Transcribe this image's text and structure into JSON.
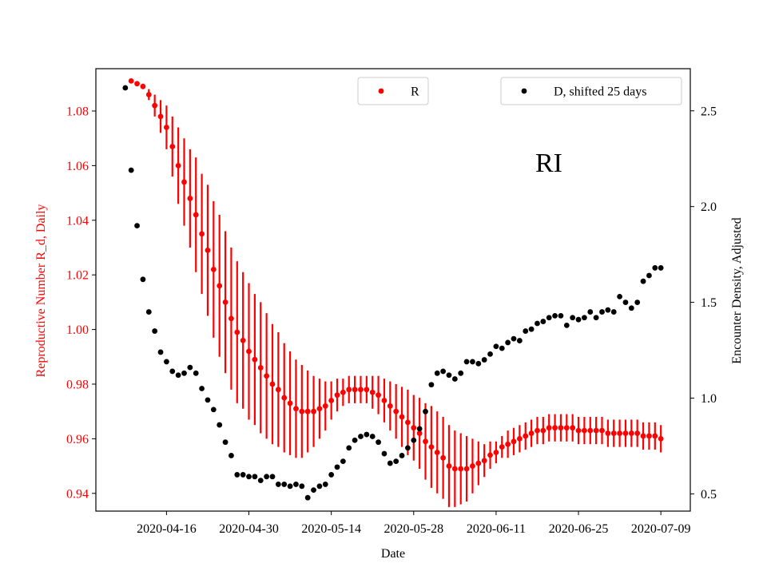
{
  "chart_data": {
    "type": "scatter",
    "annotation": "RI",
    "xlabel": "Date",
    "ylabel_left": "Reproductive Number R_d, Daily",
    "ylabel_right": "Encounter Density, Adjusted",
    "left_color": "#ff0000",
    "right_color": "#000000",
    "x_ticks": [
      "2020-04-16",
      "2020-04-30",
      "2020-05-14",
      "2020-05-28",
      "2020-06-11",
      "2020-06-25",
      "2020-07-09"
    ],
    "y_left_ticks": [
      "0.94",
      "0.96",
      "0.98",
      "1.00",
      "1.02",
      "1.04",
      "1.06",
      "1.08"
    ],
    "y_right_ticks": [
      "0.5",
      "1.0",
      "1.5",
      "2.0",
      "2.5"
    ],
    "xlim": [
      "2020-04-04",
      "2020-07-14"
    ],
    "ylim_left": [
      0.9335,
      1.0955
    ],
    "ylim_right": [
      0.41,
      2.72
    ],
    "legend_left": {
      "label": "R",
      "position": "upper-center"
    },
    "legend_right": {
      "label": "D, shifted 25 days",
      "position": "upper-right"
    },
    "series": [
      {
        "name": "R",
        "axis": "left",
        "x": [
          "2020-04-10",
          "2020-04-11",
          "2020-04-12",
          "2020-04-13",
          "2020-04-14",
          "2020-04-15",
          "2020-04-16",
          "2020-04-17",
          "2020-04-18",
          "2020-04-19",
          "2020-04-20",
          "2020-04-21",
          "2020-04-22",
          "2020-04-23",
          "2020-04-24",
          "2020-04-25",
          "2020-04-26",
          "2020-04-27",
          "2020-04-28",
          "2020-04-29",
          "2020-04-30",
          "2020-05-01",
          "2020-05-02",
          "2020-05-03",
          "2020-05-04",
          "2020-05-05",
          "2020-05-06",
          "2020-05-07",
          "2020-05-08",
          "2020-05-09",
          "2020-05-10",
          "2020-05-11",
          "2020-05-12",
          "2020-05-13",
          "2020-05-14",
          "2020-05-15",
          "2020-05-16",
          "2020-05-17",
          "2020-05-18",
          "2020-05-19",
          "2020-05-20",
          "2020-05-21",
          "2020-05-22",
          "2020-05-23",
          "2020-05-24",
          "2020-05-25",
          "2020-05-26",
          "2020-05-27",
          "2020-05-28",
          "2020-05-29",
          "2020-05-30",
          "2020-05-31",
          "2020-06-01",
          "2020-06-02",
          "2020-06-03",
          "2020-06-04",
          "2020-06-05",
          "2020-06-06",
          "2020-06-07",
          "2020-06-08",
          "2020-06-09",
          "2020-06-10",
          "2020-06-11",
          "2020-06-12",
          "2020-06-13",
          "2020-06-14",
          "2020-06-15",
          "2020-06-16",
          "2020-06-17",
          "2020-06-18",
          "2020-06-19",
          "2020-06-20",
          "2020-06-21",
          "2020-06-22",
          "2020-06-23",
          "2020-06-24",
          "2020-06-25",
          "2020-06-26",
          "2020-06-27",
          "2020-06-28",
          "2020-06-29",
          "2020-06-30",
          "2020-07-01",
          "2020-07-02",
          "2020-07-03",
          "2020-07-04",
          "2020-07-05",
          "2020-07-06",
          "2020-07-07",
          "2020-07-08",
          "2020-07-09"
        ],
        "y": [
          1.091,
          1.09,
          1.089,
          1.086,
          1.082,
          1.078,
          1.074,
          1.067,
          1.06,
          1.054,
          1.048,
          1.042,
          1.035,
          1.029,
          1.022,
          1.016,
          1.01,
          1.004,
          0.999,
          0.996,
          0.992,
          0.989,
          0.986,
          0.983,
          0.98,
          0.978,
          0.975,
          0.973,
          0.971,
          0.97,
          0.97,
          0.97,
          0.971,
          0.972,
          0.974,
          0.976,
          0.977,
          0.978,
          0.978,
          0.978,
          0.978,
          0.977,
          0.976,
          0.974,
          0.972,
          0.97,
          0.968,
          0.966,
          0.964,
          0.962,
          0.959,
          0.957,
          0.955,
          0.953,
          0.95,
          0.949,
          0.949,
          0.949,
          0.95,
          0.951,
          0.952,
          0.954,
          0.955,
          0.957,
          0.958,
          0.959,
          0.96,
          0.961,
          0.962,
          0.963,
          0.963,
          0.964,
          0.964,
          0.964,
          0.964,
          0.964,
          0.963,
          0.963,
          0.963,
          0.963,
          0.963,
          0.962,
          0.962,
          0.962,
          0.962,
          0.962,
          0.962,
          0.961,
          0.961,
          0.961,
          0.96
        ],
        "err": [
          0.0,
          0.0,
          0.001,
          0.002,
          0.004,
          0.006,
          0.008,
          0.011,
          0.014,
          0.016,
          0.018,
          0.021,
          0.022,
          0.024,
          0.025,
          0.026,
          0.026,
          0.026,
          0.026,
          0.025,
          0.025,
          0.024,
          0.024,
          0.023,
          0.022,
          0.021,
          0.02,
          0.019,
          0.018,
          0.017,
          0.015,
          0.013,
          0.011,
          0.009,
          0.007,
          0.006,
          0.005,
          0.005,
          0.005,
          0.005,
          0.005,
          0.006,
          0.007,
          0.008,
          0.009,
          0.01,
          0.011,
          0.012,
          0.012,
          0.013,
          0.014,
          0.015,
          0.015,
          0.015,
          0.015,
          0.014,
          0.013,
          0.012,
          0.01,
          0.008,
          0.006,
          0.005,
          0.004,
          0.004,
          0.005,
          0.005,
          0.005,
          0.005,
          0.005,
          0.005,
          0.005,
          0.005,
          0.005,
          0.005,
          0.005,
          0.005,
          0.005,
          0.005,
          0.005,
          0.005,
          0.005,
          0.005,
          0.005,
          0.005,
          0.005,
          0.005,
          0.005,
          0.005,
          0.005,
          0.005,
          0.005
        ]
      },
      {
        "name": "D, shifted 25 days",
        "axis": "right",
        "x": [
          "2020-04-09",
          "2020-04-10",
          "2020-04-11",
          "2020-04-12",
          "2020-04-13",
          "2020-04-14",
          "2020-04-15",
          "2020-04-16",
          "2020-04-17",
          "2020-04-18",
          "2020-04-19",
          "2020-04-20",
          "2020-04-21",
          "2020-04-22",
          "2020-04-23",
          "2020-04-24",
          "2020-04-25",
          "2020-04-26",
          "2020-04-27",
          "2020-04-28",
          "2020-04-29",
          "2020-04-30",
          "2020-05-01",
          "2020-05-02",
          "2020-05-03",
          "2020-05-04",
          "2020-05-05",
          "2020-05-06",
          "2020-05-07",
          "2020-05-08",
          "2020-05-09",
          "2020-05-10",
          "2020-05-11",
          "2020-05-12",
          "2020-05-13",
          "2020-05-14",
          "2020-05-15",
          "2020-05-16",
          "2020-05-17",
          "2020-05-18",
          "2020-05-19",
          "2020-05-20",
          "2020-05-21",
          "2020-05-22",
          "2020-05-23",
          "2020-05-24",
          "2020-05-25",
          "2020-05-26",
          "2020-05-27",
          "2020-05-28",
          "2020-05-29",
          "2020-05-30",
          "2020-05-31",
          "2020-06-01",
          "2020-06-02",
          "2020-06-03",
          "2020-06-04",
          "2020-06-05",
          "2020-06-06",
          "2020-06-07",
          "2020-06-08",
          "2020-06-09",
          "2020-06-10",
          "2020-06-11",
          "2020-06-12",
          "2020-06-13",
          "2020-06-14",
          "2020-06-15",
          "2020-06-16",
          "2020-06-17",
          "2020-06-18",
          "2020-06-19",
          "2020-06-20",
          "2020-06-21",
          "2020-06-22",
          "2020-06-23",
          "2020-06-24",
          "2020-06-25",
          "2020-06-26",
          "2020-06-27",
          "2020-06-28",
          "2020-06-29",
          "2020-06-30",
          "2020-07-01",
          "2020-07-02",
          "2020-07-03",
          "2020-07-04",
          "2020-07-05",
          "2020-07-06",
          "2020-07-07",
          "2020-07-08",
          "2020-07-09"
        ],
        "y": [
          2.62,
          2.19,
          1.9,
          1.62,
          1.45,
          1.35,
          1.24,
          1.19,
          1.14,
          1.12,
          1.13,
          1.16,
          1.13,
          1.05,
          0.99,
          0.94,
          0.86,
          0.77,
          0.7,
          0.6,
          0.6,
          0.59,
          0.59,
          0.57,
          0.59,
          0.59,
          0.55,
          0.55,
          0.54,
          0.55,
          0.54,
          0.48,
          0.52,
          0.54,
          0.55,
          0.6,
          0.64,
          0.67,
          0.74,
          0.78,
          0.8,
          0.81,
          0.8,
          0.77,
          0.71,
          0.66,
          0.67,
          0.7,
          0.74,
          0.78,
          0.84,
          0.93,
          1.07,
          1.13,
          1.14,
          1.12,
          1.1,
          1.13,
          1.19,
          1.19,
          1.18,
          1.2,
          1.23,
          1.27,
          1.26,
          1.29,
          1.31,
          1.3,
          1.35,
          1.36,
          1.39,
          1.4,
          1.42,
          1.43,
          1.43,
          1.38,
          1.42,
          1.41,
          1.42,
          1.45,
          1.42,
          1.45,
          1.46,
          1.45,
          1.53,
          1.5,
          1.47,
          1.5,
          1.61,
          1.64,
          1.68,
          1.68
        ]
      }
    ]
  }
}
